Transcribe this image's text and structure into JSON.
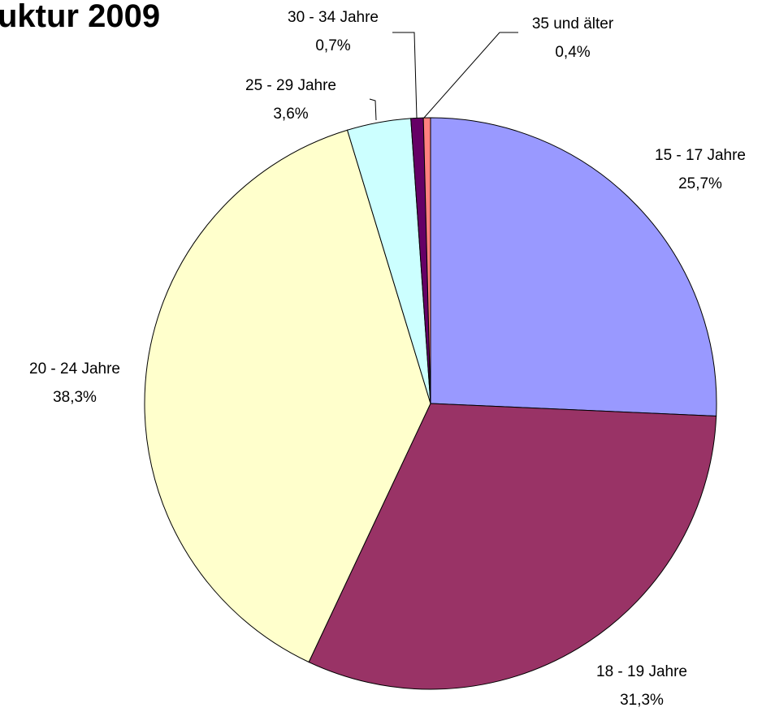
{
  "chart_data": {
    "type": "pie",
    "title": "uktur 2009",
    "categories": [
      "15 - 17 Jahre",
      "18 - 19 Jahre",
      "20 - 24 Jahre",
      "25 - 29 Jahre",
      "30 - 34 Jahre",
      "35 und älter"
    ],
    "values": [
      25.7,
      31.3,
      38.3,
      3.6,
      0.7,
      0.4
    ],
    "value_labels": [
      "25,7%",
      "31,3%",
      "38,3%",
      "3,6%",
      "0,7%",
      "0,4%"
    ],
    "colors": [
      "#9999ff",
      "#993366",
      "#ffffcc",
      "#ccffff",
      "#660066",
      "#ff8080"
    ]
  }
}
